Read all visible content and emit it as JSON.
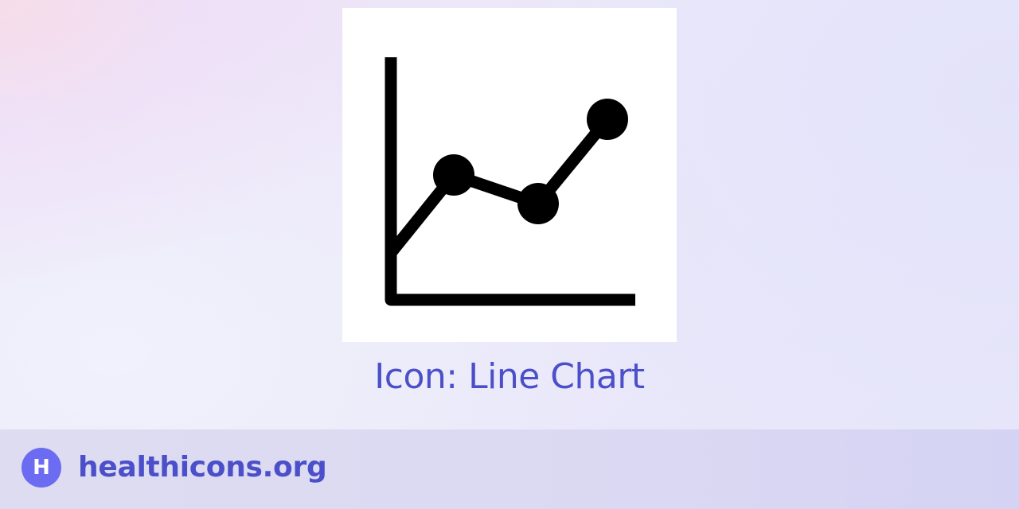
{
  "caption": {
    "text": "Icon: Line Chart"
  },
  "footer": {
    "logo_letter": "H",
    "site_name": "healthicons.org"
  },
  "icon": {
    "name": "line-chart-icon"
  },
  "colors": {
    "accent": "#4b4fc9",
    "brand": "#6b6cf2",
    "site_name": "#4b4fc9",
    "card_background": "#ffffff",
    "icon_stroke": "#000000"
  }
}
